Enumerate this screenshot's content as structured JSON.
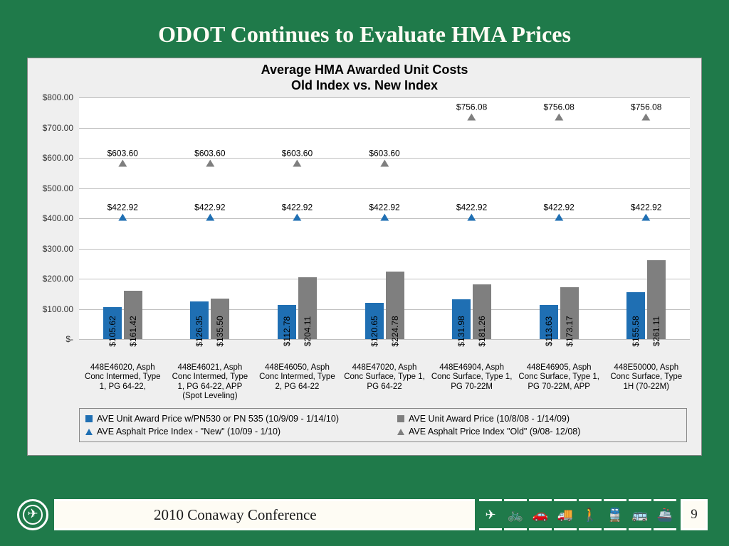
{
  "slide": {
    "title": "ODOT Continues to Evaluate HMA Prices",
    "background_color": "#1f7a4a",
    "title_color": "#fefcf4",
    "title_fontsize": 32
  },
  "chart": {
    "type": "bar-with-markers",
    "title_line1": "Average HMA Awarded Unit Costs",
    "title_line2": "Old Index vs. New Index",
    "title_fontsize": 18,
    "background_color": "#efefef",
    "plot_background": "#ffffff",
    "grid_color": "#bfbfbf",
    "ylim": [
      0,
      800
    ],
    "ytick_step": 100,
    "yticks": [
      {
        "v": 800,
        "label": "$800.00"
      },
      {
        "v": 700,
        "label": "$700.00"
      },
      {
        "v": 600,
        "label": "$600.00"
      },
      {
        "v": 500,
        "label": "$500.00"
      },
      {
        "v": 400,
        "label": "$400.00"
      },
      {
        "v": 300,
        "label": "$300.00"
      },
      {
        "v": 200,
        "label": "$200.00"
      },
      {
        "v": 100,
        "label": "$100.00"
      },
      {
        "v": 0,
        "label": "$-"
      }
    ],
    "series": {
      "bar1": {
        "label": "AVE Unit Award Price w/PN530 or PN 535 (10/9/09 - 1/14/10)",
        "color": "#1f6fb3"
      },
      "bar2": {
        "label": "AVE Unit Award Price (10/8/08 - 1/14/09)",
        "color": "#7f7f7f"
      },
      "marker_new": {
        "label": "AVE Asphalt Price Index - \"New\" (10/09 - 1/10)",
        "color": "#1f6fb3",
        "shape": "triangle"
      },
      "marker_old": {
        "label": "AVE Asphalt Price Index  \"Old\" (9/08- 12/08)",
        "color": "#7f7f7f",
        "shape": "triangle"
      }
    },
    "categories": [
      {
        "label": "448E46020, Asph Conc Intermed, Type 1, PG 64-22,",
        "bar1": 105.62,
        "bar2": 161.42,
        "new": 422.92,
        "old": 603.6
      },
      {
        "label": "448E46021, Asph Conc Intermed, Type 1, PG 64-22, APP (Spot Leveling)",
        "bar1": 126.35,
        "bar2": 135.5,
        "new": 422.92,
        "old": 603.6
      },
      {
        "label": "448E46050, Asph Conc Intermed, Type 2, PG 64-22",
        "bar1": 112.78,
        "bar2": 204.11,
        "new": 422.92,
        "old": 603.6
      },
      {
        "label": "448E47020, Asph Conc Surface, Type 1, PG 64-22",
        "bar1": 120.65,
        "bar2": 224.78,
        "new": 422.92,
        "old": 603.6
      },
      {
        "label": "448E46904, Asph Conc Surface, Type 1, PG 70-22M",
        "bar1": 131.98,
        "bar2": 181.26,
        "new": 422.92,
        "old": 756.08
      },
      {
        "label": "448E46905, Asph Conc Surface, Type 1, PG 70-22M, APP",
        "bar1": 113.63,
        "bar2": 173.17,
        "new": 422.92,
        "old": 756.08
      },
      {
        "label": "448E50000, Asph Conc Surface, Type 1H (70-22M)",
        "bar1": 155.58,
        "bar2": 261.11,
        "new": 422.92,
        "old": 756.08
      }
    ],
    "bar_labels": [
      {
        "b1": "$105.62",
        "b2": "$161.42"
      },
      {
        "b1": "$126.35",
        "b2": "$135.50"
      },
      {
        "b1": "$112.78",
        "b2": "$204.11"
      },
      {
        "b1": "$120.65",
        "b2": "$224.78"
      },
      {
        "b1": "$131.98",
        "b2": "$181.26"
      },
      {
        "b1": "$113.63",
        "b2": "$173.17"
      },
      {
        "b1": "$155.58",
        "b2": "$261.11"
      }
    ],
    "marker_labels": [
      {
        "new": "$422.92",
        "old": "$603.60"
      },
      {
        "new": "$422.92",
        "old": "$603.60"
      },
      {
        "new": "$422.92",
        "old": "$603.60"
      },
      {
        "new": "$422.92",
        "old": "$603.60"
      },
      {
        "new": "$422.92",
        "old": "$756.08"
      },
      {
        "new": "$422.92",
        "old": "$756.08"
      },
      {
        "new": "$422.92",
        "old": "$756.08"
      }
    ]
  },
  "footer": {
    "conference": "2010 Conaway Conference",
    "page": "9",
    "bar_bg": "#fefcf4",
    "icons": [
      "✈",
      "🚲",
      "🚗",
      "🚚",
      "🚶",
      "🚆",
      "🚌",
      "🚢"
    ]
  }
}
